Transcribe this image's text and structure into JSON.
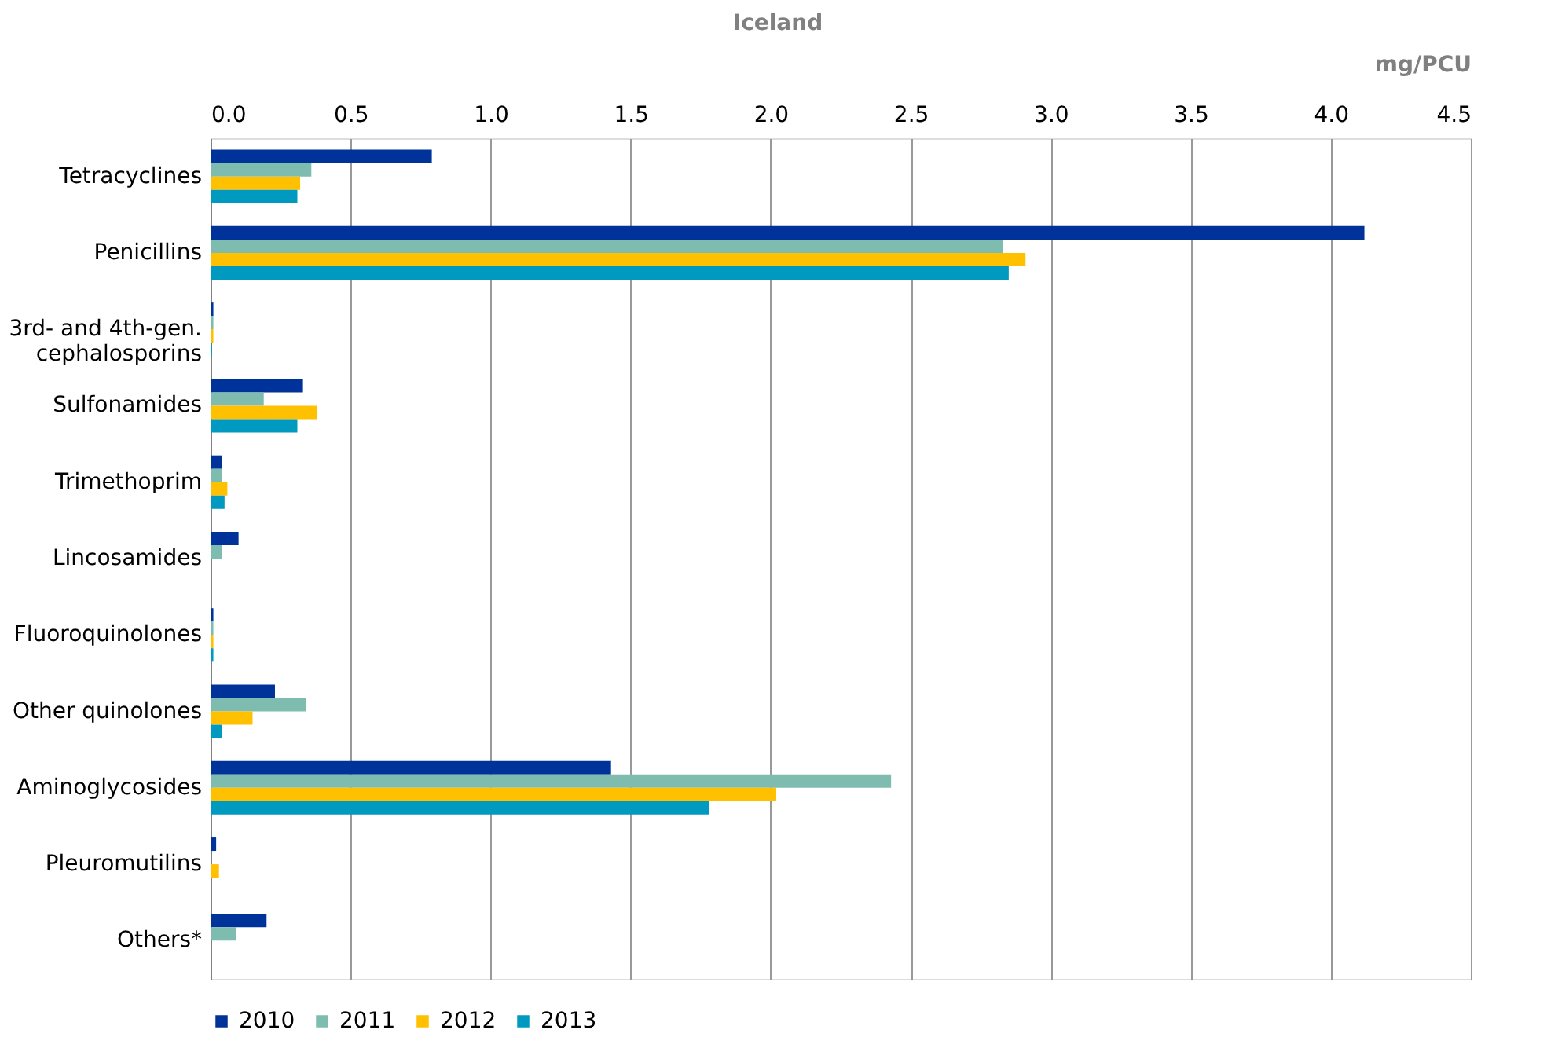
{
  "chart_data": {
    "type": "bar",
    "orientation": "horizontal",
    "title": "Iceland",
    "xlabel": "mg/PCU",
    "categories": [
      "Tetracyclines",
      "Penicillins",
      "3rd- and 4th-gen.\ncephalosporins",
      "Sulfonamides",
      "Trimethoprim",
      "Lincosamides",
      "Fluoroquinolones",
      "Other quinolones",
      "Aminoglycosides",
      "Pleuromutilins",
      "Others*"
    ],
    "series": [
      {
        "name": "2010",
        "color": "#003399",
        "values": [
          0.79,
          4.12,
          0.01,
          0.33,
          0.04,
          0.1,
          0.01,
          0.23,
          1.43,
          0.02,
          0.2
        ]
      },
      {
        "name": "2011",
        "color": "#7fbcb0",
        "values": [
          0.36,
          2.83,
          0.01,
          0.19,
          0.04,
          0.04,
          0.01,
          0.34,
          2.43,
          0,
          0.09
        ]
      },
      {
        "name": "2012",
        "color": "#ffc000",
        "values": [
          0.32,
          2.91,
          0.01,
          0.38,
          0.06,
          0,
          0.01,
          0.15,
          2.02,
          0.03,
          0
        ]
      },
      {
        "name": "2013",
        "color": "#009ac0",
        "values": [
          0.31,
          2.85,
          0.005,
          0.31,
          0.05,
          0,
          0.01,
          0.04,
          1.78,
          0,
          0
        ]
      }
    ],
    "xlim": [
      0,
      4.5
    ],
    "xticks": [
      {
        "value": 0,
        "label": "0.0"
      },
      0.5,
      {
        "value": 1,
        "label": "1.0"
      },
      1.5,
      {
        "value": 2,
        "label": "2.0"
      },
      2.5,
      {
        "value": 3,
        "label": "3.0"
      },
      3.5,
      {
        "value": 4,
        "label": "4.0"
      },
      4.5
    ],
    "grid": "x",
    "legend": "bottom"
  }
}
